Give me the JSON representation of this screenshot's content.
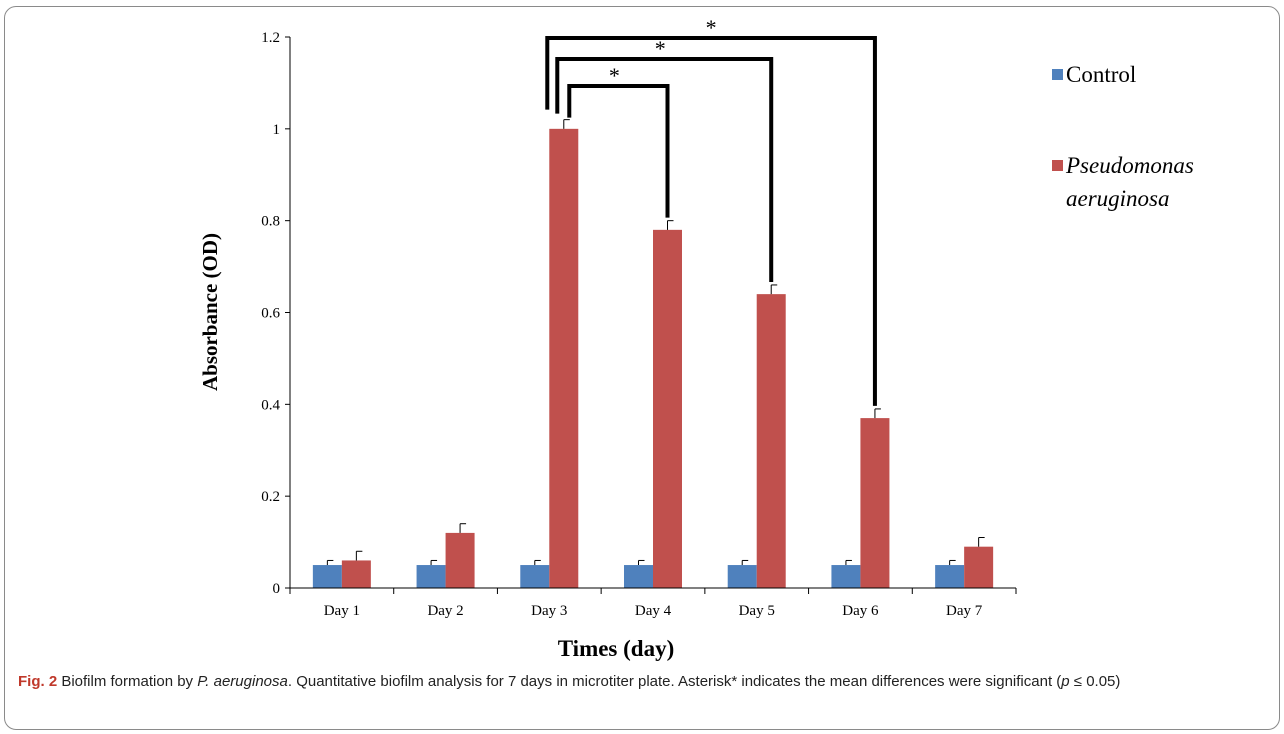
{
  "chart_data": {
    "type": "bar",
    "categories": [
      "Day 1",
      "Day 2",
      "Day 3",
      "Day 4",
      "Day 5",
      "Day 6",
      "Day 7"
    ],
    "series": [
      {
        "name": "Control",
        "color": "#4f81bd",
        "values": [
          0.05,
          0.05,
          0.05,
          0.05,
          0.05,
          0.05,
          0.05
        ],
        "errors": [
          0.01,
          0.01,
          0.01,
          0.01,
          0.01,
          0.01,
          0.01
        ]
      },
      {
        "name": "Pseudomonas aeruginosa",
        "color": "#c0504d",
        "values": [
          0.06,
          0.12,
          1.0,
          0.78,
          0.64,
          0.37,
          0.09
        ],
        "errors": [
          0.02,
          0.02,
          0.02,
          0.02,
          0.02,
          0.02,
          0.02
        ]
      }
    ],
    "legend_lines": {
      "control": "Control",
      "pa_line1": "Pseudomonas",
      "pa_line2": "aeruginosa"
    },
    "xlabel": "Times (day)",
    "ylabel": "Absorbance (OD)",
    "ylim": [
      0,
      1.2
    ],
    "yticks": [
      "0",
      "0.2",
      "0.4",
      "0.6",
      "0.8",
      "1",
      "1.2"
    ],
    "legend_position": "right",
    "grid": false,
    "significance": [
      {
        "from": "Day 3",
        "to": "Day 4",
        "label": "*"
      },
      {
        "from": "Day 3",
        "to": "Day 5",
        "label": "*"
      },
      {
        "from": "Day 3",
        "to": "Day 6",
        "label": "*"
      }
    ]
  },
  "caption": {
    "fig_label": "Fig. 2",
    "part1": " Biofilm formation by ",
    "organism": "P. aeruginosa",
    "part2": ". Quantitative biofilm analysis for 7 days in microtiter plate. Asterisk* indicates the mean differences were significant (",
    "p": "p",
    "part3": " ≤ 0.05)"
  }
}
